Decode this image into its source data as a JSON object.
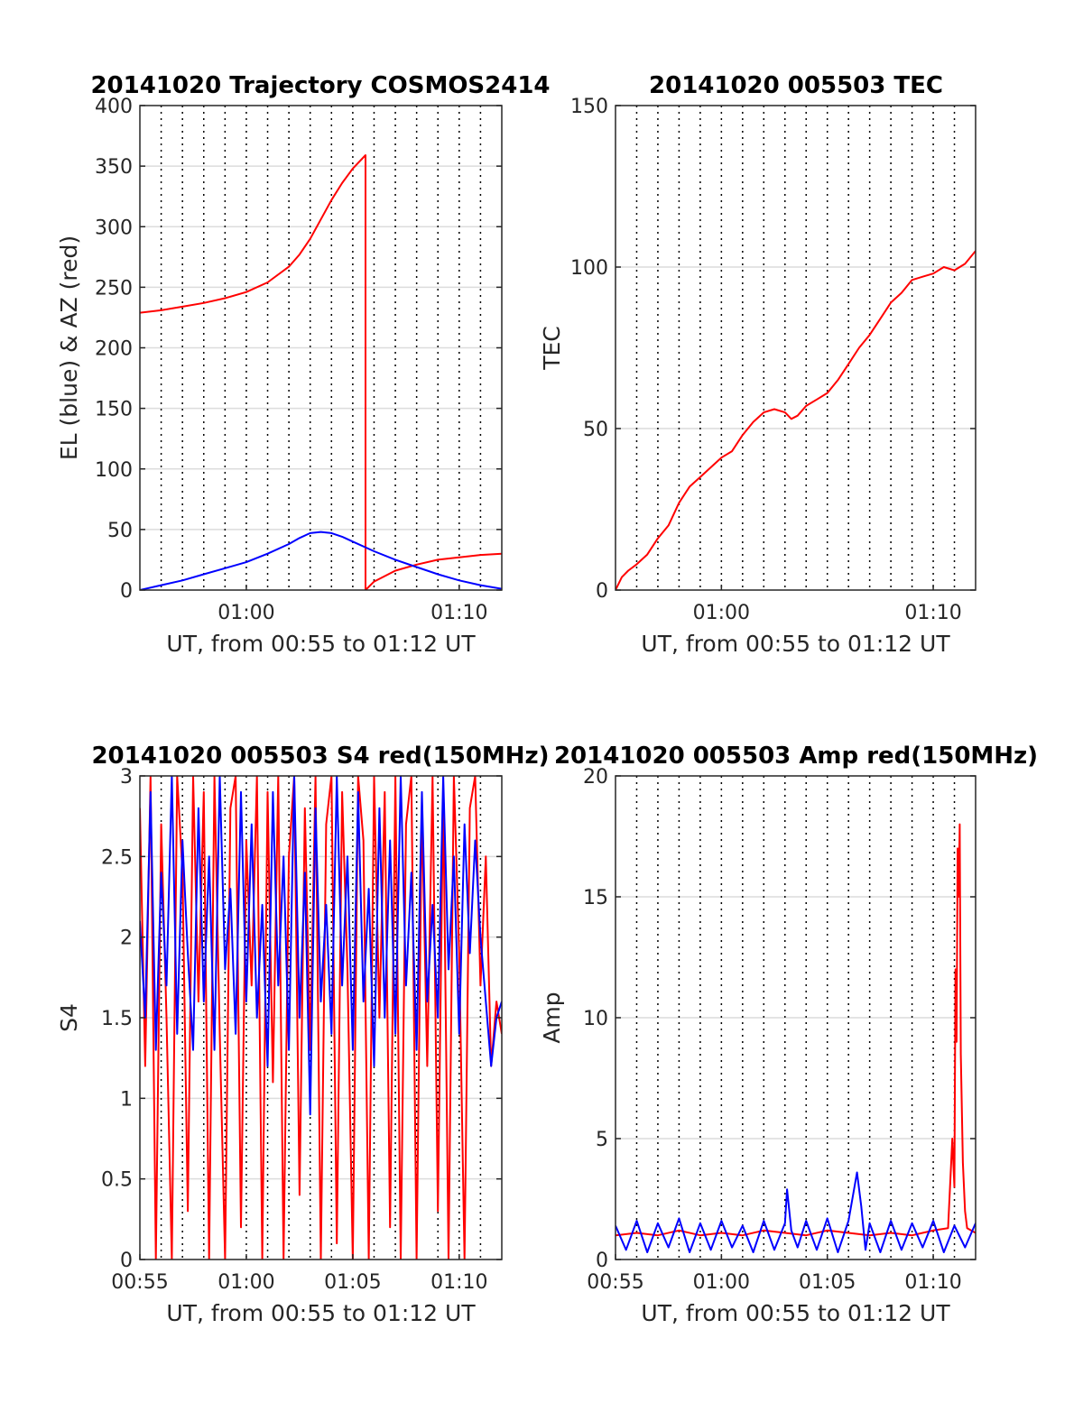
{
  "chart_data": [
    {
      "id": "trajectory",
      "type": "line",
      "title": "20141020 Trajectory COSMOS2414",
      "xlabel": "UT, from 00:55 to 01:12 UT",
      "ylabel": "EL (blue) & AZ (red)",
      "xlim": [
        55.0,
        72.0
      ],
      "ylim": [
        0,
        400
      ],
      "xticks": [
        {
          "value": 60,
          "label": "01:00"
        },
        {
          "value": 70,
          "label": "01:10"
        }
      ],
      "yticks": [
        0,
        50,
        100,
        150,
        200,
        250,
        300,
        350,
        400
      ],
      "grid": true,
      "series": [
        {
          "color": "#ff0000",
          "x": [
            55.0,
            56.0,
            57.0,
            58.0,
            59.0,
            60.0,
            61.0,
            62.0,
            62.5,
            63.0,
            63.5,
            64.0,
            64.5,
            65.0,
            65.6,
            65.6,
            66.0,
            67.0,
            68.0,
            69.0,
            70.0,
            71.0,
            72.0
          ],
          "y": [
            229,
            231,
            234,
            237,
            241,
            246,
            254,
            267,
            277,
            290,
            306,
            322,
            336,
            348,
            359,
            0,
            7,
            16,
            21,
            25,
            27,
            29,
            30
          ]
        },
        {
          "color": "#0000ff",
          "x": [
            55.0,
            56.0,
            57.0,
            58.0,
            59.0,
            60.0,
            61.0,
            62.0,
            62.5,
            63.0,
            63.5,
            64.0,
            64.5,
            65.0,
            66.0,
            67.0,
            68.0,
            69.0,
            70.0,
            71.0,
            72.0
          ],
          "y": [
            0,
            4,
            8,
            13,
            18,
            23,
            30,
            38,
            43,
            47,
            48,
            47,
            44,
            40,
            32,
            25,
            19,
            13,
            8,
            4,
            1
          ]
        }
      ]
    },
    {
      "id": "tec",
      "type": "line",
      "title": "20141020 005503 TEC",
      "xlabel": "UT, from 00:55 to 01:12 UT",
      "ylabel": "TEC",
      "xlim": [
        55.0,
        72.0
      ],
      "ylim": [
        0,
        150
      ],
      "xticks": [
        {
          "value": 60,
          "label": "01:00"
        },
        {
          "value": 70,
          "label": "01:10"
        }
      ],
      "yticks": [
        0,
        50,
        100,
        150
      ],
      "grid": true,
      "series": [
        {
          "color": "#ff0000",
          "x": [
            55.0,
            55.3,
            55.6,
            56.0,
            56.5,
            57.0,
            57.5,
            58.0,
            58.5,
            59.0,
            59.5,
            60.0,
            60.5,
            61.0,
            61.5,
            62.0,
            62.5,
            63.0,
            63.3,
            63.6,
            64.0,
            64.5,
            65.0,
            65.5,
            66.0,
            66.5,
            67.0,
            67.5,
            68.0,
            68.5,
            69.0,
            69.5,
            70.0,
            70.5,
            71.0,
            71.5,
            72.0
          ],
          "y": [
            0,
            4,
            6,
            8,
            11,
            16,
            20,
            27,
            32,
            35,
            38,
            41,
            43,
            48,
            52,
            55,
            56,
            55,
            53,
            54,
            57,
            59,
            61,
            65,
            70,
            75,
            79,
            84,
            89,
            92,
            96,
            97,
            98,
            100,
            99,
            101,
            105
          ]
        }
      ]
    },
    {
      "id": "s4",
      "type": "line",
      "title": "20141020 005503 S4 red(150MHz)",
      "xlabel": "UT, from 00:55 to 01:12 UT",
      "ylabel": "S4",
      "xlim": [
        55.0,
        72.0
      ],
      "ylim": [
        0,
        3
      ],
      "xticks": [
        {
          "value": 55,
          "label": "00:55"
        },
        {
          "value": 60,
          "label": "01:00"
        },
        {
          "value": 65,
          "label": "01:05"
        },
        {
          "value": 70,
          "label": "01:10"
        }
      ],
      "yticks": [
        0,
        0.5,
        1,
        1.5,
        2,
        2.5,
        3
      ],
      "grid": true,
      "series": [
        {
          "color": "#ff0000",
          "x": [
            55.0,
            55.25,
            55.5,
            55.75,
            56.0,
            56.25,
            56.5,
            56.75,
            57.0,
            57.25,
            57.5,
            57.75,
            58.0,
            58.25,
            58.5,
            58.75,
            59.0,
            59.25,
            59.5,
            59.75,
            60.0,
            60.25,
            60.5,
            60.75,
            61.0,
            61.25,
            61.5,
            61.75,
            62.0,
            62.25,
            62.5,
            62.75,
            63.0,
            63.25,
            63.5,
            63.75,
            64.0,
            64.25,
            64.5,
            64.75,
            65.0,
            65.25,
            65.5,
            65.75,
            66.0,
            66.25,
            66.5,
            66.75,
            67.0,
            67.25,
            67.5,
            67.75,
            68.0,
            68.25,
            68.5,
            68.75,
            69.0,
            69.25,
            69.5,
            69.75,
            70.0,
            70.25,
            70.5,
            70.75,
            71.0,
            71.25,
            71.5,
            71.75,
            72.0
          ],
          "y": [
            2.8,
            1.2,
            3.0,
            0.0,
            2.7,
            1.5,
            0.0,
            3.0,
            2.4,
            0.3,
            3.0,
            1.6,
            2.9,
            0.0,
            3.0,
            1.4,
            0.0,
            2.8,
            3.0,
            0.2,
            2.6,
            1.7,
            3.0,
            0.0,
            2.9,
            1.1,
            3.0,
            0.0,
            2.5,
            3.0,
            0.4,
            2.8,
            1.3,
            3.0,
            0.0,
            2.7,
            3.0,
            0.1,
            2.9,
            1.8,
            0.0,
            3.0,
            2.6,
            0.0,
            3.0,
            1.5,
            2.9,
            0.2,
            3.0,
            0.0,
            2.7,
            3.0,
            0.0,
            2.8,
            1.2,
            3.0,
            0.3,
            2.9,
            0.0,
            3.0,
            1.9,
            0.0,
            2.8,
            3.0,
            1.7,
            2.5,
            1.2,
            1.6,
            1.4
          ]
        },
        {
          "color": "#0000ff",
          "x": [
            55.0,
            55.25,
            55.5,
            55.75,
            56.0,
            56.25,
            56.5,
            56.75,
            57.0,
            57.25,
            57.5,
            57.75,
            58.0,
            58.25,
            58.5,
            58.75,
            59.0,
            59.25,
            59.5,
            59.75,
            60.0,
            60.25,
            60.5,
            60.75,
            61.0,
            61.25,
            61.5,
            61.75,
            62.0,
            62.25,
            62.5,
            62.75,
            63.0,
            63.25,
            63.5,
            63.75,
            64.0,
            64.25,
            64.5,
            64.75,
            65.0,
            65.25,
            65.5,
            65.75,
            66.0,
            66.25,
            66.5,
            66.75,
            67.0,
            67.25,
            67.5,
            67.75,
            68.0,
            68.25,
            68.5,
            68.75,
            69.0,
            69.25,
            69.5,
            69.75,
            70.0,
            70.25,
            70.5,
            70.75,
            71.0,
            71.25,
            71.5,
            71.75,
            72.0
          ],
          "y": [
            2.1,
            1.5,
            2.9,
            1.3,
            2.4,
            1.7,
            3.0,
            1.4,
            2.6,
            1.9,
            1.3,
            2.8,
            1.6,
            2.5,
            1.3,
            3.0,
            1.8,
            2.3,
            1.4,
            2.9,
            1.6,
            2.7,
            1.5,
            2.2,
            1.2,
            2.9,
            1.7,
            2.5,
            1.3,
            3.0,
            1.5,
            2.4,
            0.9,
            2.8,
            1.6,
            2.2,
            1.4,
            3.0,
            1.7,
            2.5,
            1.3,
            2.9,
            1.6,
            2.3,
            1.2,
            2.8,
            1.5,
            2.6,
            1.4,
            3.0,
            1.7,
            2.4,
            1.3,
            2.9,
            1.6,
            2.2,
            1.5,
            3.0,
            1.8,
            2.5,
            1.4,
            2.7,
            1.9,
            2.6,
            2.0,
            1.6,
            1.2,
            1.5,
            1.6
          ]
        }
      ]
    },
    {
      "id": "amp",
      "type": "line",
      "title": "20141020 005503 Amp red(150MHz)",
      "xlabel": "UT, from 00:55 to 01:12 UT",
      "ylabel": "Amp",
      "xlim": [
        55.0,
        72.0
      ],
      "ylim": [
        0,
        20
      ],
      "xticks": [
        {
          "value": 55,
          "label": "00:55"
        },
        {
          "value": 60,
          "label": "01:00"
        },
        {
          "value": 65,
          "label": "01:05"
        },
        {
          "value": 70,
          "label": "01:10"
        }
      ],
      "yticks": [
        0,
        5,
        10,
        15,
        20
      ],
      "grid": true,
      "series": [
        {
          "color": "#ff0000",
          "x": [
            55.0,
            56.0,
            57.0,
            58.0,
            59.0,
            60.0,
            61.0,
            62.0,
            63.0,
            64.0,
            65.0,
            66.0,
            67.0,
            68.0,
            69.0,
            70.0,
            70.7,
            70.9,
            71.0,
            71.05,
            71.1,
            71.15,
            71.2,
            71.25,
            71.3,
            71.4,
            71.5,
            71.6,
            72.0
          ],
          "y": [
            1.0,
            1.1,
            1.0,
            1.2,
            1.0,
            1.1,
            1.0,
            1.2,
            1.1,
            1.0,
            1.2,
            1.1,
            1.0,
            1.1,
            1.0,
            1.2,
            1.3,
            5.0,
            3.0,
            12.0,
            9.0,
            17.0,
            15.0,
            18.0,
            8.5,
            4.0,
            2.0,
            1.3,
            1.1
          ]
        },
        {
          "color": "#0000ff",
          "x": [
            55.0,
            55.5,
            56.0,
            56.5,
            57.0,
            57.5,
            58.0,
            58.5,
            59.0,
            59.5,
            60.0,
            60.5,
            61.0,
            61.5,
            62.0,
            62.5,
            63.0,
            63.1,
            63.3,
            63.6,
            64.0,
            64.5,
            65.0,
            65.5,
            66.0,
            66.4,
            66.6,
            66.8,
            67.0,
            67.5,
            68.0,
            68.5,
            69.0,
            69.5,
            70.0,
            70.5,
            71.0,
            71.5,
            72.0
          ],
          "y": [
            1.4,
            0.4,
            1.6,
            0.3,
            1.5,
            0.5,
            1.7,
            0.3,
            1.5,
            0.4,
            1.6,
            0.5,
            1.4,
            0.3,
            1.6,
            0.4,
            1.5,
            2.9,
            1.2,
            0.5,
            1.6,
            0.4,
            1.7,
            0.3,
            1.6,
            3.6,
            2.2,
            0.4,
            1.5,
            0.3,
            1.6,
            0.4,
            1.5,
            0.5,
            1.6,
            0.3,
            1.4,
            0.5,
            1.5
          ]
        }
      ]
    }
  ]
}
